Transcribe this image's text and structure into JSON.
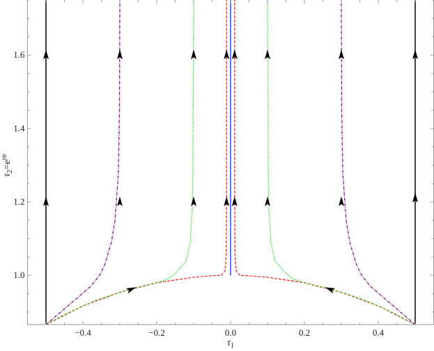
{
  "chart_data": {
    "type": "line",
    "title": "",
    "xlabel": "τ1",
    "ylabel": "τ2=e^γφ",
    "xlabel_parts": {
      "main": "τ",
      "sub": "1"
    },
    "ylabel_parts": {
      "main": "τ",
      "sub": "2",
      "eq": "=e",
      "sup": "γφ"
    },
    "xlim": [
      -0.55,
      0.55
    ],
    "ylim": [
      0.866,
      1.75
    ],
    "grid": false,
    "x_ticks": [
      -0.4,
      -0.2,
      0.0,
      0.2,
      0.4
    ],
    "x_tick_labels": [
      "−0.4",
      "−0.2",
      "0.0",
      "0.2",
      "0.4"
    ],
    "y_ticks": [
      1.0,
      1.2,
      1.4,
      1.6
    ],
    "y_tick_labels": [
      "1.0",
      "1.2",
      "1.4",
      "1.6"
    ],
    "series": [
      {
        "color": "#ff2020",
        "style": "dashed",
        "points": [
          [
            -0.5,
            0.866
          ],
          [
            -0.4,
            0.917
          ],
          [
            -0.3,
            0.954
          ],
          [
            -0.2,
            0.98
          ],
          [
            -0.1,
            0.995
          ],
          [
            -0.05,
            0.999
          ],
          [
            -0.025,
            1.0
          ],
          [
            -0.015,
            1.013
          ],
          [
            -0.012,
            1.05
          ],
          [
            -0.011,
            1.2
          ],
          [
            -0.011,
            1.75
          ]
        ]
      },
      {
        "color": "#ff2020",
        "style": "dashed",
        "points": [
          [
            0.5,
            0.866
          ],
          [
            0.4,
            0.917
          ],
          [
            0.3,
            0.954
          ],
          [
            0.2,
            0.98
          ],
          [
            0.1,
            0.995
          ],
          [
            0.05,
            0.999
          ],
          [
            0.025,
            1.0
          ],
          [
            0.015,
            1.013
          ],
          [
            0.012,
            1.05
          ],
          [
            0.011,
            1.2
          ],
          [
            0.011,
            1.75
          ]
        ]
      },
      {
        "color": "#22dd22",
        "style": "dotted",
        "points": [
          [
            -0.5,
            0.866
          ],
          [
            -0.45,
            0.893
          ],
          [
            -0.4,
            0.917
          ],
          [
            -0.36,
            0.934
          ],
          [
            -0.3,
            0.954
          ],
          [
            -0.25,
            0.968
          ],
          [
            -0.2,
            0.98
          ],
          [
            -0.17,
            0.99
          ],
          [
            -0.147,
            1.008
          ],
          [
            -0.121,
            1.038
          ],
          [
            -0.109,
            1.089
          ],
          [
            -0.104,
            1.18
          ],
          [
            -0.102,
            1.278
          ],
          [
            -0.1,
            1.75
          ]
        ]
      },
      {
        "color": "#22dd22",
        "style": "dotted",
        "points": [
          [
            0.5,
            0.866
          ],
          [
            0.45,
            0.893
          ],
          [
            0.4,
            0.917
          ],
          [
            0.36,
            0.934
          ],
          [
            0.3,
            0.954
          ],
          [
            0.25,
            0.968
          ],
          [
            0.2,
            0.98
          ],
          [
            0.17,
            0.99
          ],
          [
            0.147,
            1.008
          ],
          [
            0.121,
            1.038
          ],
          [
            0.109,
            1.089
          ],
          [
            0.104,
            1.18
          ],
          [
            0.102,
            1.278
          ],
          [
            0.1,
            1.75
          ]
        ]
      },
      {
        "color": "#800080",
        "style": "dashdot",
        "points": [
          [
            -0.5,
            0.866
          ],
          [
            -0.46,
            0.9
          ],
          [
            -0.423,
            0.932
          ],
          [
            -0.379,
            0.97
          ],
          [
            -0.355,
            1.0
          ],
          [
            -0.342,
            1.026
          ],
          [
            -0.323,
            1.089
          ],
          [
            -0.313,
            1.15
          ],
          [
            -0.304,
            1.278
          ],
          [
            -0.301,
            1.45
          ],
          [
            -0.3,
            1.75
          ]
        ]
      },
      {
        "color": "#800080",
        "style": "dashdot",
        "points": [
          [
            0.5,
            0.866
          ],
          [
            0.46,
            0.9
          ],
          [
            0.423,
            0.932
          ],
          [
            0.379,
            0.97
          ],
          [
            0.355,
            1.0
          ],
          [
            0.342,
            1.026
          ],
          [
            0.323,
            1.089
          ],
          [
            0.313,
            1.15
          ],
          [
            0.304,
            1.278
          ],
          [
            0.301,
            1.45
          ],
          [
            0.3,
            1.75
          ]
        ]
      },
      {
        "color": "#3a4cff",
        "style": "solid",
        "points": [
          [
            0,
            1.0
          ],
          [
            0,
            1.75
          ]
        ]
      },
      {
        "color": "#111111",
        "style": "solid",
        "points": [
          [
            -0.5,
            0.866
          ],
          [
            -0.5,
            1.75
          ]
        ]
      },
      {
        "color": "#111111",
        "style": "solid",
        "points": [
          [
            0.5,
            0.866
          ],
          [
            0.5,
            1.75
          ]
        ]
      }
    ],
    "arrows": [
      {
        "x": -0.5,
        "y": 1.2,
        "dir": "up"
      },
      {
        "x": -0.5,
        "y": 1.6,
        "dir": "up"
      },
      {
        "x": 0.5,
        "y": 1.21,
        "dir": "up"
      },
      {
        "x": 0.5,
        "y": 1.6,
        "dir": "up"
      },
      {
        "x": -0.3,
        "y": 1.2,
        "dir": "up"
      },
      {
        "x": -0.3,
        "y": 1.6,
        "dir": "up"
      },
      {
        "x": 0.3,
        "y": 1.2,
        "dir": "up"
      },
      {
        "x": 0.3,
        "y": 1.6,
        "dir": "up"
      },
      {
        "x": -0.1,
        "y": 1.2,
        "dir": "up"
      },
      {
        "x": -0.1,
        "y": 1.6,
        "dir": "up"
      },
      {
        "x": 0.1,
        "y": 1.2,
        "dir": "up"
      },
      {
        "x": 0.1,
        "y": 1.6,
        "dir": "up"
      },
      {
        "x": -0.011,
        "y": 1.2,
        "dir": "up"
      },
      {
        "x": -0.011,
        "y": 1.6,
        "dir": "up"
      },
      {
        "x": 0.011,
        "y": 1.2,
        "dir": "up"
      },
      {
        "x": 0.011,
        "y": 1.6,
        "dir": "up"
      },
      {
        "x": -0.27,
        "y": 0.962,
        "dir": "right"
      },
      {
        "x": 0.27,
        "y": 0.962,
        "dir": "left"
      }
    ]
  }
}
